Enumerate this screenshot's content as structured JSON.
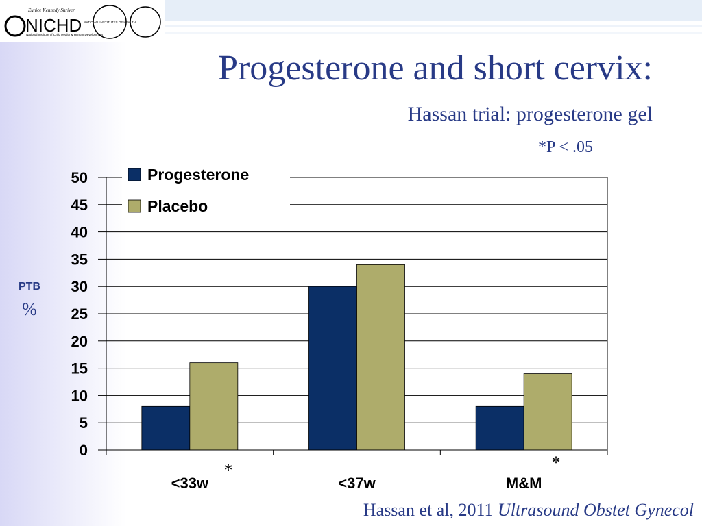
{
  "logo": {
    "tagline": "Eunice Kennedy Shriver",
    "name": "NICHD",
    "institute": "National Institute of Child Health & Human Development",
    "nih": "NATIONAL INSTITUTES OF HEALTH"
  },
  "chart_data": {
    "type": "bar",
    "title": "Progesterone and short cervix:",
    "subtitle": "Hassan trial: progesterone gel",
    "note": "*P < .05",
    "y_label": [
      "PTB",
      "%"
    ],
    "categories": [
      "<33w",
      "<37w",
      "M&M"
    ],
    "series": [
      {
        "name": "Progesterone",
        "color": "#0b2f66",
        "values": [
          8,
          30,
          8
        ]
      },
      {
        "name": "Placebo",
        "color": "#aeac6b",
        "values": [
          16,
          34,
          14
        ]
      }
    ],
    "ylim": [
      0,
      50
    ],
    "yticks": [
      0,
      5,
      10,
      15,
      20,
      25,
      30,
      35,
      40,
      45,
      50
    ],
    "grid": true,
    "annotations": [
      "*",
      "*"
    ]
  },
  "citation": {
    "authors": "Hassan et al, 2011",
    "journal": "Ultrasound Obstet Gynecol"
  }
}
